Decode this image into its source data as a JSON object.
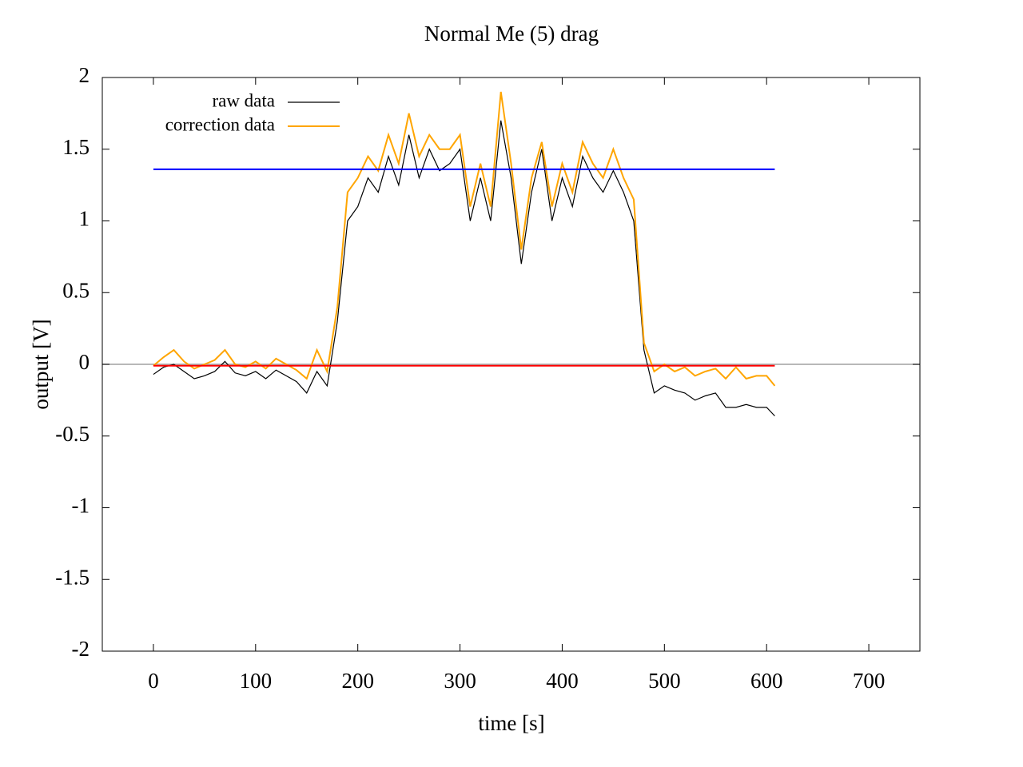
{
  "chart_data": {
    "type": "line",
    "title": "Normal  Me (5) drag",
    "x_label": "time [s]",
    "y_label": "output [V]",
    "xlim": [
      -50,
      750
    ],
    "ylim": [
      -2,
      2
    ],
    "xticks": [
      0,
      100,
      200,
      300,
      400,
      500,
      600,
      700
    ],
    "yticks": [
      -2,
      -1.5,
      -1,
      -0.5,
      0,
      0.5,
      1,
      1.5,
      2
    ],
    "zero_axis": true,
    "zero_axis_color": "#a0a0a0",
    "legend": "upper-left",
    "series": [
      {
        "name": "raw data",
        "color": "#000000",
        "x": [
          0,
          10,
          20,
          30,
          40,
          50,
          60,
          70,
          80,
          90,
          100,
          110,
          120,
          130,
          140,
          150,
          160,
          170,
          180,
          190,
          200,
          210,
          220,
          230,
          240,
          250,
          260,
          270,
          280,
          290,
          300,
          310,
          320,
          330,
          340,
          350,
          360,
          370,
          380,
          390,
          400,
          410,
          420,
          430,
          440,
          450,
          460,
          470,
          480,
          490,
          500,
          510,
          520,
          530,
          540,
          550,
          560,
          570,
          580,
          590,
          600,
          608
        ],
        "values": [
          -0.07,
          -0.02,
          0.0,
          -0.05,
          -0.1,
          -0.08,
          -0.05,
          0.02,
          -0.06,
          -0.08,
          -0.05,
          -0.1,
          -0.04,
          -0.08,
          -0.12,
          -0.2,
          -0.05,
          -0.15,
          0.3,
          1.0,
          1.1,
          1.3,
          1.2,
          1.45,
          1.25,
          1.6,
          1.3,
          1.5,
          1.35,
          1.4,
          1.5,
          1.0,
          1.3,
          1.0,
          1.7,
          1.3,
          0.7,
          1.2,
          1.5,
          1.0,
          1.3,
          1.1,
          1.45,
          1.3,
          1.2,
          1.35,
          1.2,
          1.0,
          0.1,
          -0.2,
          -0.15,
          -0.18,
          -0.2,
          -0.25,
          -0.22,
          -0.2,
          -0.3,
          -0.3,
          -0.28,
          -0.3,
          -0.3,
          -0.36
        ]
      },
      {
        "name": "correction data",
        "color": "#ffa500",
        "x": [
          0,
          10,
          20,
          30,
          40,
          50,
          60,
          70,
          80,
          90,
          100,
          110,
          120,
          130,
          140,
          150,
          160,
          170,
          180,
          190,
          200,
          210,
          220,
          230,
          240,
          250,
          260,
          270,
          280,
          290,
          300,
          310,
          320,
          330,
          340,
          350,
          360,
          370,
          380,
          390,
          400,
          410,
          420,
          430,
          440,
          450,
          460,
          470,
          480,
          490,
          500,
          510,
          520,
          530,
          540,
          550,
          560,
          570,
          580,
          590,
          600,
          608
        ],
        "values": [
          -0.01,
          0.05,
          0.1,
          0.02,
          -0.03,
          0.0,
          0.03,
          0.1,
          0.0,
          -0.02,
          0.02,
          -0.03,
          0.04,
          0.0,
          -0.04,
          -0.1,
          0.1,
          -0.05,
          0.4,
          1.2,
          1.3,
          1.45,
          1.35,
          1.6,
          1.4,
          1.75,
          1.45,
          1.6,
          1.5,
          1.5,
          1.6,
          1.1,
          1.4,
          1.1,
          1.9,
          1.4,
          0.8,
          1.3,
          1.55,
          1.1,
          1.4,
          1.2,
          1.55,
          1.4,
          1.3,
          1.5,
          1.3,
          1.15,
          0.15,
          -0.05,
          0.0,
          -0.05,
          -0.02,
          -0.08,
          -0.05,
          -0.03,
          -0.1,
          -0.02,
          -0.1,
          -0.08,
          -0.08,
          -0.15
        ]
      },
      {
        "color": "#0000ff",
        "x": [
          0,
          608
        ],
        "values": [
          1.36,
          1.36
        ]
      },
      {
        "color": "#ff0000",
        "x": [
          0,
          608
        ],
        "values": [
          -0.01,
          -0.01
        ]
      }
    ]
  }
}
